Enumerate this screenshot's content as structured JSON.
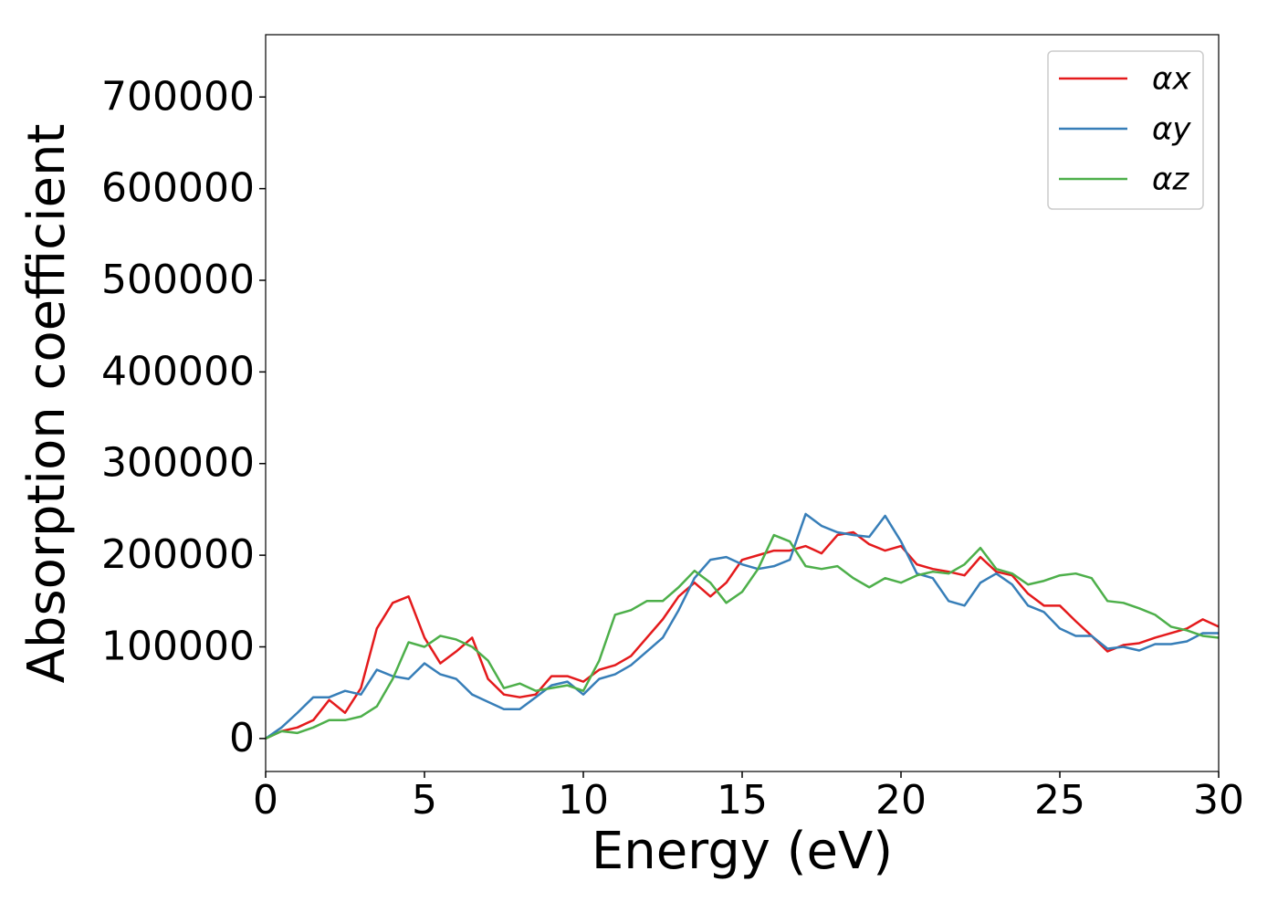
{
  "chart_data": {
    "type": "line",
    "xlabel": "Energy (eV)",
    "ylabel": "Absorption coefficient",
    "x": [
      0,
      0.5,
      1,
      1.5,
      2,
      2.5,
      3,
      3.5,
      4,
      4.5,
      5,
      5.5,
      6,
      6.5,
      7,
      7.5,
      8,
      8.5,
      9,
      9.5,
      10,
      10.5,
      11,
      11.5,
      12,
      12.5,
      13,
      13.5,
      14,
      14.5,
      15,
      15.5,
      16,
      16.5,
      17,
      17.5,
      18,
      18.5,
      19,
      19.5,
      20,
      20.5,
      21,
      21.5,
      22,
      22.5,
      23,
      23.5,
      24,
      24.5,
      25,
      25.5,
      26,
      26.5,
      27,
      27.5,
      28,
      28.5,
      29,
      29.5,
      30
    ],
    "series": [
      {
        "name": "αx",
        "color": "#e41a1c",
        "values": [
          0,
          8000,
          12000,
          20000,
          42000,
          28000,
          55000,
          120000,
          148000,
          155000,
          110000,
          82000,
          95000,
          110000,
          65000,
          48000,
          45000,
          48000,
          68000,
          68000,
          62000,
          75000,
          80000,
          90000,
          110000,
          130000,
          155000,
          170000,
          155000,
          170000,
          195000,
          200000,
          205000,
          205000,
          210000,
          202000,
          222000,
          225000,
          212000,
          205000,
          210000,
          190000,
          185000,
          182000,
          178000,
          198000,
          182000,
          178000,
          158000,
          145000,
          145000,
          128000,
          112000,
          95000,
          102000,
          104000,
          110000,
          115000,
          120000,
          130000,
          122000
        ]
      },
      {
        "name": "αy",
        "color": "#377eb8",
        "values": [
          0,
          12000,
          28000,
          45000,
          45000,
          52000,
          48000,
          75000,
          68000,
          65000,
          82000,
          70000,
          65000,
          48000,
          40000,
          32000,
          32000,
          45000,
          58000,
          62000,
          48000,
          65000,
          70000,
          80000,
          95000,
          110000,
          140000,
          175000,
          195000,
          198000,
          190000,
          185000,
          188000,
          195000,
          245000,
          232000,
          225000,
          222000,
          220000,
          243000,
          215000,
          180000,
          175000,
          150000,
          145000,
          170000,
          180000,
          168000,
          145000,
          138000,
          120000,
          112000,
          112000,
          98000,
          100000,
          96000,
          103000,
          103000,
          106000,
          115000,
          115000
        ]
      },
      {
        "name": "αz",
        "color": "#4daf4a",
        "values": [
          0,
          8000,
          6000,
          12000,
          20000,
          20000,
          24000,
          35000,
          65000,
          105000,
          100000,
          112000,
          108000,
          100000,
          85000,
          55000,
          60000,
          52000,
          55000,
          58000,
          52000,
          85000,
          135000,
          140000,
          150000,
          150000,
          165000,
          183000,
          170000,
          148000,
          160000,
          185000,
          222000,
          215000,
          188000,
          185000,
          188000,
          175000,
          165000,
          175000,
          170000,
          178000,
          182000,
          180000,
          190000,
          208000,
          185000,
          180000,
          168000,
          172000,
          178000,
          180000,
          175000,
          150000,
          148000,
          142000,
          135000,
          122000,
          118000,
          112000,
          110000
        ]
      }
    ],
    "xlim": [
      0,
      30
    ],
    "xticks": [
      0,
      5,
      10,
      15,
      20,
      25,
      30
    ],
    "ylim": [
      -36000,
      768000
    ],
    "yticks": [
      0,
      100000,
      200000,
      300000,
      400000,
      500000,
      600000,
      700000
    ],
    "legend": "upper right",
    "grid": false
  }
}
